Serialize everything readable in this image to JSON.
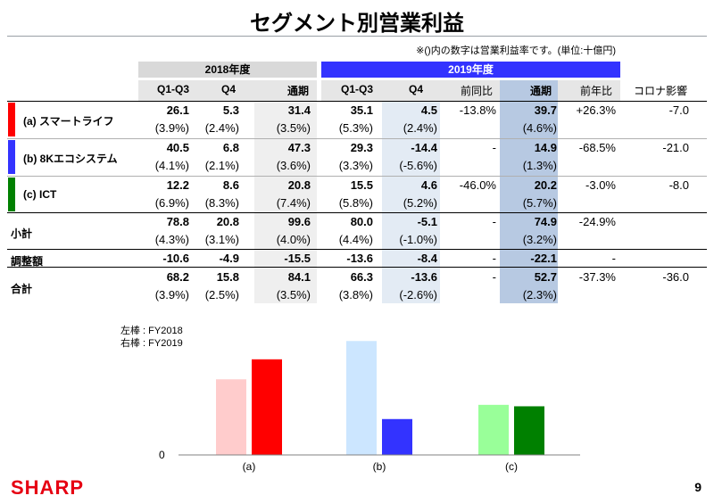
{
  "title": "セグメント別営業利益",
  "unit_note": "※()内の数字は営業利益率です。(単位:十億円)",
  "year_headers": {
    "fy2018": "2018年度",
    "fy2019": "2019年度"
  },
  "columns": [
    "Q1-Q3",
    "Q4",
    "通期",
    "Q1-Q3",
    "Q4",
    "前同比",
    "通期",
    "前年比",
    "コロナ影響"
  ],
  "rows": [
    {
      "label": "(a) スマートライフ",
      "values": [
        "26.1",
        "5.3",
        "31.4",
        "35.1",
        "4.5",
        "-13.8%",
        "39.7",
        "+26.3%",
        "-7.0"
      ],
      "margins": [
        "(3.9%)",
        "(2.4%)",
        "(3.5%)",
        "(5.3%)",
        "(2.4%)",
        "",
        "(4.6%)",
        "",
        ""
      ]
    },
    {
      "label": "(b) 8Kエコシステム",
      "values": [
        "40.5",
        "6.8",
        "47.3",
        "29.3",
        "-14.4",
        "-",
        "14.9",
        "-68.5%",
        "-21.0"
      ],
      "margins": [
        "(4.1%)",
        "(2.1%)",
        "(3.6%)",
        "(3.3%)",
        "(-5.6%)",
        "",
        "(1.3%)",
        "",
        ""
      ]
    },
    {
      "label": "(c) ICT",
      "values": [
        "12.2",
        "8.6",
        "20.8",
        "15.5",
        "4.6",
        "-46.0%",
        "20.2",
        "-3.0%",
        "-8.0"
      ],
      "margins": [
        "(6.9%)",
        "(8.3%)",
        "(7.4%)",
        "(5.8%)",
        "(5.2%)",
        "",
        "(5.7%)",
        "",
        ""
      ]
    },
    {
      "label": "小計",
      "values": [
        "78.8",
        "20.8",
        "99.6",
        "80.0",
        "-5.1",
        "-",
        "74.9",
        "-24.9%",
        ""
      ],
      "margins": [
        "(4.3%)",
        "(3.1%)",
        "(4.0%)",
        "(4.4%)",
        "(-1.0%)",
        "",
        "(3.2%)",
        "",
        ""
      ]
    },
    {
      "label": "調整額",
      "values": [
        "-10.6",
        "-4.9",
        "-15.5",
        "-13.6",
        "-8.4",
        "-",
        "-22.1",
        "-",
        ""
      ],
      "margins": []
    },
    {
      "label": "合計",
      "values": [
        "68.2",
        "15.8",
        "84.1",
        "66.3",
        "-13.6",
        "-",
        "52.7",
        "-37.3%",
        "-36.0"
      ],
      "margins": [
        "(3.9%)",
        "(2.5%)",
        "(3.5%)",
        "(3.8%)",
        "(-2.6%)",
        "",
        "(2.3%)",
        "",
        ""
      ]
    }
  ],
  "legend": {
    "left": "左棒 : FY2018",
    "right": "右棒 : FY2019"
  },
  "chart_data": {
    "type": "bar",
    "categories": [
      "(a)",
      "(b)",
      "(c)"
    ],
    "series": [
      {
        "values": [
          31.4,
          47.3,
          20.8
        ],
        "colors": [
          "#ffcccc",
          "#cce6ff",
          "#99ff99"
        ]
      },
      {
        "values": [
          39.7,
          14.9,
          20.2
        ],
        "colors": [
          "#ff0000",
          "#3333ff",
          "#008000"
        ]
      }
    ],
    "y_zero_label": "0",
    "ylim": [
      0,
      50
    ]
  },
  "segment_colors": [
    "#ff0000",
    "#3333ff",
    "#008000"
  ],
  "logo": "SHARP",
  "page_number": "9"
}
